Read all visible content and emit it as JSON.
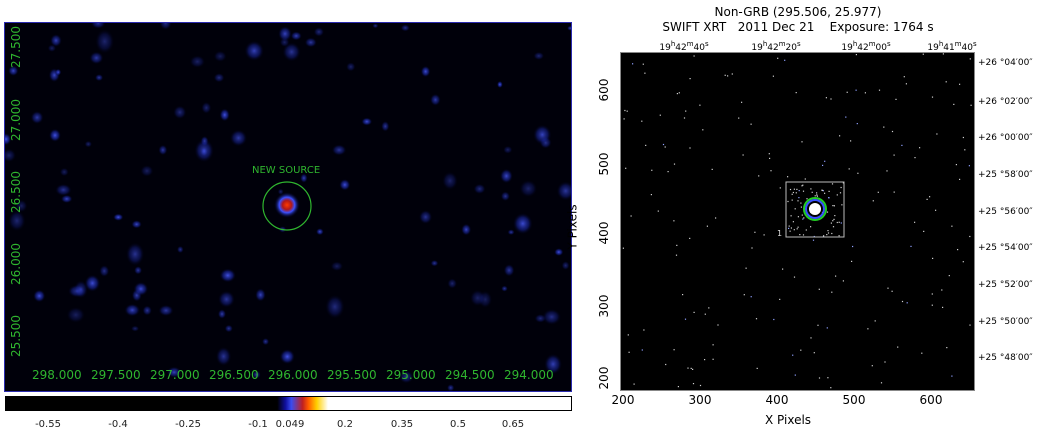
{
  "left_panel": {
    "y_ticks": [
      "27.500",
      "27.000",
      "26.500",
      "26.000",
      "25.500"
    ],
    "x_ticks": [
      "298.000",
      "297.500",
      "297.000",
      "296.500",
      "296.000",
      "295.500",
      "295.000",
      "294.500",
      "294.000"
    ],
    "source_label": "NEW SOURCE",
    "colors": {
      "background": "#00000a",
      "label": "#2fb52f",
      "circle": "#2fb52f"
    }
  },
  "colorbar": {
    "ticks": [
      "-0.55",
      "-0.4",
      "-0.25",
      "-0.1",
      "0.049",
      "0.2",
      "0.35",
      "0.5",
      "0.65"
    ]
  },
  "right_panel": {
    "title_line1": "Non-GRB (295.506, 25.977)",
    "title_line2": "SWIFT XRT   2011 Dec 21    Exposure: 1764 s",
    "ra_ticks": [
      "19h42m40s",
      "19h42m20s",
      "19h42m00s",
      "19h41m40s"
    ],
    "dec_ticks": [
      "+26 °04′00″",
      "+26 °02′00″",
      "+26 °00′00″",
      "+25 °58′00″",
      "+25 °56′00″",
      "+25 °54′00″",
      "+25 °52′00″",
      "+25 °50′00″",
      "+25 °48′00″"
    ],
    "x_ticks": [
      "200",
      "300",
      "400",
      "500",
      "600"
    ],
    "y_ticks": [
      "600",
      "500",
      "400",
      "300",
      "200"
    ],
    "x_label": "X Pixels",
    "y_label": "Y Pixels",
    "box_label": "1"
  }
}
